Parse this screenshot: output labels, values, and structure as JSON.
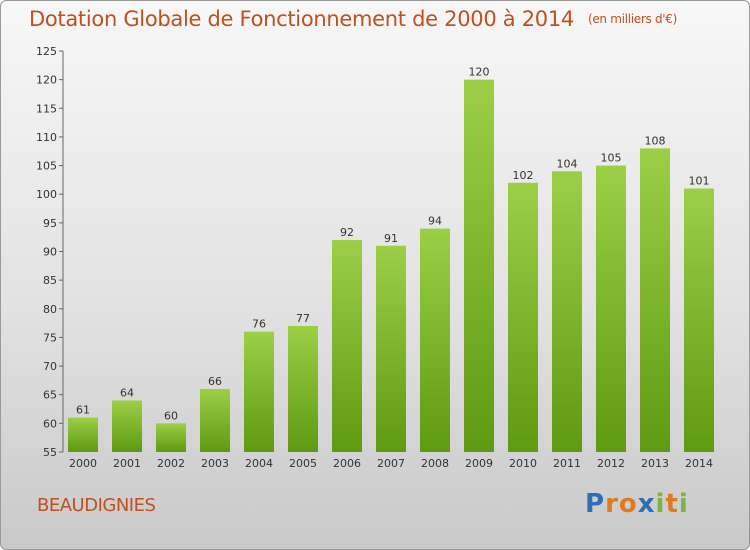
{
  "title": "Dotation Globale de Fonctionnement de 2000 à 2014",
  "subtitle": "(en milliers d'€)",
  "commune": "BEAUDIGNIES",
  "brand": {
    "text": "Proxiti",
    "letters": [
      "P",
      "r",
      "o",
      "x",
      "i",
      "t",
      "i"
    ],
    "colors": [
      "#2f6db5",
      "#e07a1f",
      "#e07a1f",
      "#2f6db5",
      "#7cb342",
      "#e07a1f",
      "#7cb342"
    ]
  },
  "colors": {
    "bar_light": "#9ccf45",
    "bar_dark": "#5e9a12",
    "title": "#c0501e"
  },
  "chart_data": {
    "type": "bar",
    "title": "Dotation Globale de Fonctionnement de 2000 à 2014",
    "subtitle": "(en milliers d'€)",
    "categories": [
      "2000",
      "2001",
      "2002",
      "2003",
      "2004",
      "2005",
      "2006",
      "2007",
      "2008",
      "2009",
      "2010",
      "2011",
      "2012",
      "2013",
      "2014"
    ],
    "values": [
      61,
      64,
      60,
      66,
      76,
      77,
      92,
      91,
      94,
      120,
      102,
      104,
      105,
      108,
      101
    ],
    "ylim": [
      55,
      125
    ],
    "yticks": [
      55,
      60,
      65,
      70,
      75,
      80,
      85,
      90,
      95,
      100,
      105,
      110,
      115,
      120,
      125
    ],
    "grid": false,
    "legend": "none"
  }
}
